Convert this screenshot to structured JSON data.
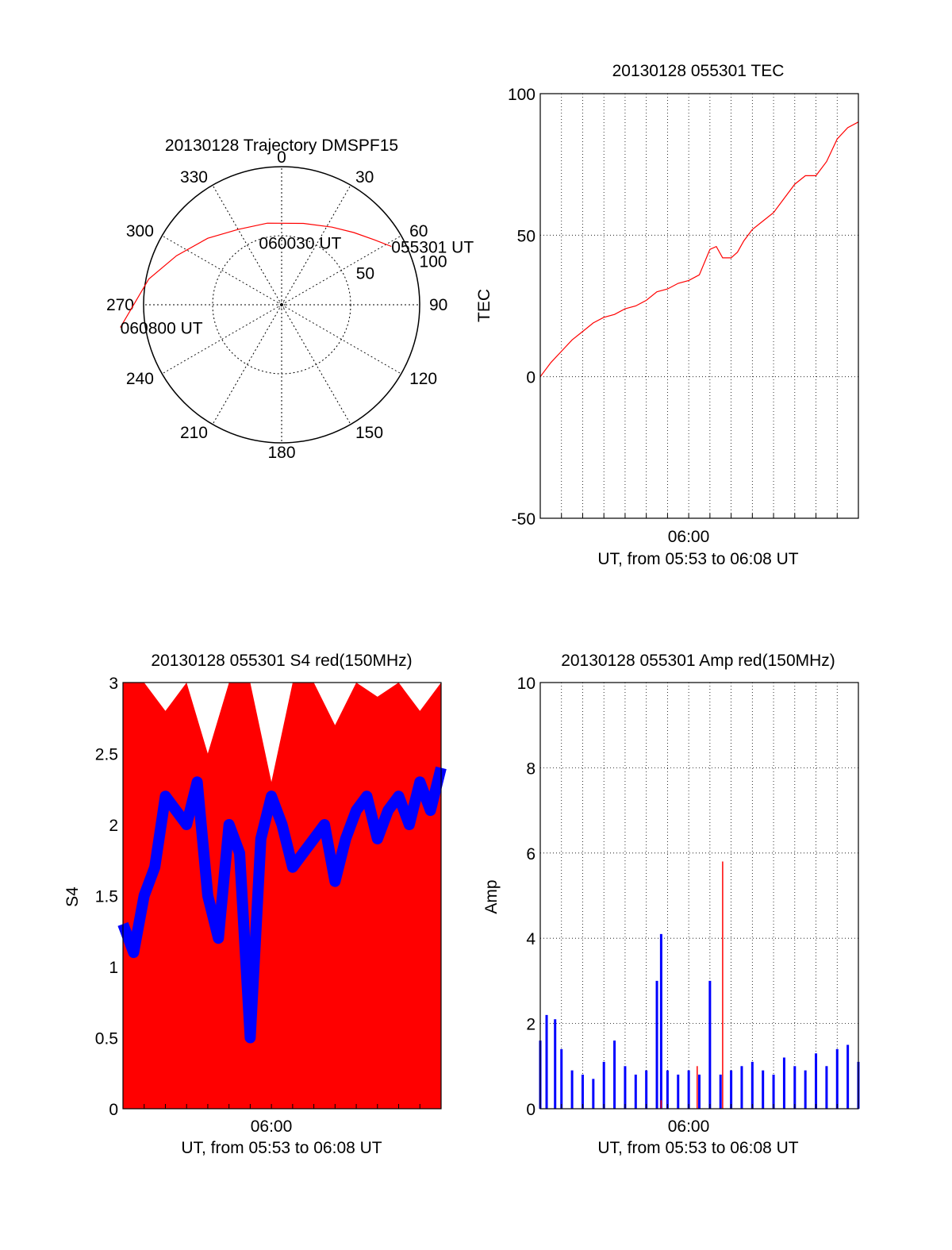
{
  "chart_data": [
    {
      "type": "scatter",
      "subtype": "polar",
      "title": "20130128 Trajectory DMSPF15",
      "angle_ticks": [
        "0",
        "30",
        "60",
        "90",
        "120",
        "150",
        "180",
        "210",
        "240",
        "270",
        "300",
        "330"
      ],
      "radial_ticks": [
        "50",
        "100"
      ],
      "radial_max": 100,
      "track_color": "#ff0000",
      "track": [
        {
          "azimuth": 62,
          "elevation": 10
        },
        {
          "azimuth": 55,
          "elevation": 18
        },
        {
          "azimuth": 45,
          "elevation": 26
        },
        {
          "azimuth": 33,
          "elevation": 33
        },
        {
          "azimuth": 15,
          "elevation": 39
        },
        {
          "azimuth": -10,
          "elevation": 40
        },
        {
          "azimuth": -30,
          "elevation": 37
        },
        {
          "azimuth": -48,
          "elevation": 28
        },
        {
          "azimuth": -65,
          "elevation": 16
        },
        {
          "azimuth": -79,
          "elevation": 2
        },
        {
          "azimuth": -98,
          "elevation": -18
        }
      ],
      "annotations": [
        {
          "text": "055301 UT",
          "azimuth": 62,
          "elevation": 10
        },
        {
          "text": "060030 UT",
          "azimuth": -20,
          "elevation": 52
        },
        {
          "text": "060800 UT",
          "azimuth": -98,
          "elevation": -18
        }
      ],
      "grid": "dotted"
    },
    {
      "type": "line",
      "title": "20130128 055301 TEC",
      "xlabel": "UT, from 05:53 to 06:08 UT",
      "ylabel": "TEC",
      "xlim_minutes": [
        53,
        68
      ],
      "ylim": [
        -50,
        100
      ],
      "yticks": [
        "-50",
        "0",
        "50",
        "100"
      ],
      "xtick_label": "06:00",
      "grid": true,
      "series": [
        {
          "color": "#ff0000",
          "x": [
            53,
            53.5,
            54,
            54.5,
            55,
            55.5,
            56,
            56.5,
            57,
            57.5,
            58,
            58.5,
            59,
            59.5,
            60,
            60.5,
            61,
            61.3,
            61.6,
            62,
            62.3,
            62.6,
            63,
            63.5,
            64,
            64.5,
            65,
            65.5,
            66,
            66.5,
            67,
            67.5,
            68
          ],
          "values": [
            0,
            5,
            9,
            13,
            16,
            19,
            21,
            22,
            24,
            25,
            27,
            30,
            31,
            33,
            34,
            36,
            45,
            46,
            42,
            42,
            44,
            48,
            52,
            55,
            58,
            63,
            68,
            71,
            71,
            76,
            84,
            88,
            90
          ]
        }
      ]
    },
    {
      "type": "area",
      "title": "20130128 055301 S4 red(150MHz)",
      "xlabel": "UT, from 05:53 to 06:08 UT",
      "ylabel": "S4",
      "xlim_minutes": [
        53,
        68
      ],
      "ylim": [
        0,
        3
      ],
      "yticks": [
        "0",
        "0.5",
        "1",
        "1.5",
        "2",
        "2.5",
        "3"
      ],
      "xtick_label": "06:00",
      "grid": false,
      "series": [
        {
          "color": "#ff0000",
          "x": [
            53,
            54,
            55,
            56,
            57,
            58,
            59,
            60,
            61,
            62,
            63,
            64,
            65,
            66,
            67,
            68
          ],
          "values": [
            3,
            3,
            2.8,
            3,
            2.5,
            3,
            3,
            2.3,
            3,
            3,
            2.7,
            3,
            2.9,
            3,
            2.8,
            3
          ]
        },
        {
          "color": "#0000ff",
          "x": [
            53,
            53.5,
            54,
            54.5,
            55,
            55.5,
            56,
            56.5,
            57,
            57.5,
            58,
            58.5,
            59,
            59.5,
            60,
            60.5,
            61,
            61.5,
            62,
            62.5,
            63,
            63.5,
            64,
            64.5,
            65,
            65.5,
            66,
            66.5,
            67,
            67.5,
            68
          ],
          "values": [
            1.3,
            1.1,
            1.5,
            1.7,
            2.2,
            2.1,
            2.0,
            2.3,
            1.5,
            1.2,
            2.0,
            1.8,
            0.5,
            1.9,
            2.2,
            2.0,
            1.7,
            1.8,
            1.9,
            2.0,
            1.6,
            1.9,
            2.1,
            2.2,
            1.9,
            2.1,
            2.2,
            2.0,
            2.3,
            2.1,
            2.4
          ]
        }
      ]
    },
    {
      "type": "bar",
      "title": "20130128 055301 Amp red(150MHz)",
      "xlabel": "UT, from 05:53 to 06:08 UT",
      "ylabel": "Amp",
      "xlim_minutes": [
        53,
        68
      ],
      "ylim": [
        0,
        10
      ],
      "yticks": [
        "0",
        "2",
        "4",
        "6",
        "8",
        "10"
      ],
      "xtick_label": "06:00",
      "grid": true,
      "series": [
        {
          "color": "#0000ff",
          "x": [
            53,
            53.3,
            53.7,
            54,
            54.5,
            55,
            55.5,
            56,
            56.5,
            57,
            57.5,
            58,
            58.5,
            58.7,
            59,
            59.5,
            60,
            60.5,
            61,
            61.5,
            62,
            62.5,
            63,
            63.5,
            64,
            64.5,
            65,
            65.5,
            66,
            66.5,
            67,
            67.5,
            68
          ],
          "values": [
            1.6,
            2.2,
            2.1,
            1.4,
            0.9,
            0.8,
            0.7,
            1.1,
            1.6,
            1.0,
            0.8,
            0.9,
            3.0,
            4.1,
            0.9,
            0.8,
            0.9,
            0.8,
            3.0,
            0.8,
            0.9,
            1.0,
            1.1,
            0.9,
            0.8,
            1.2,
            1.0,
            0.9,
            1.3,
            1.0,
            1.4,
            1.5,
            1.1
          ]
        },
        {
          "color": "#ff0000",
          "x": [
            61.6,
            58.7,
            60.4
          ],
          "values": [
            5.8,
            0.2,
            1.0
          ]
        }
      ]
    }
  ]
}
